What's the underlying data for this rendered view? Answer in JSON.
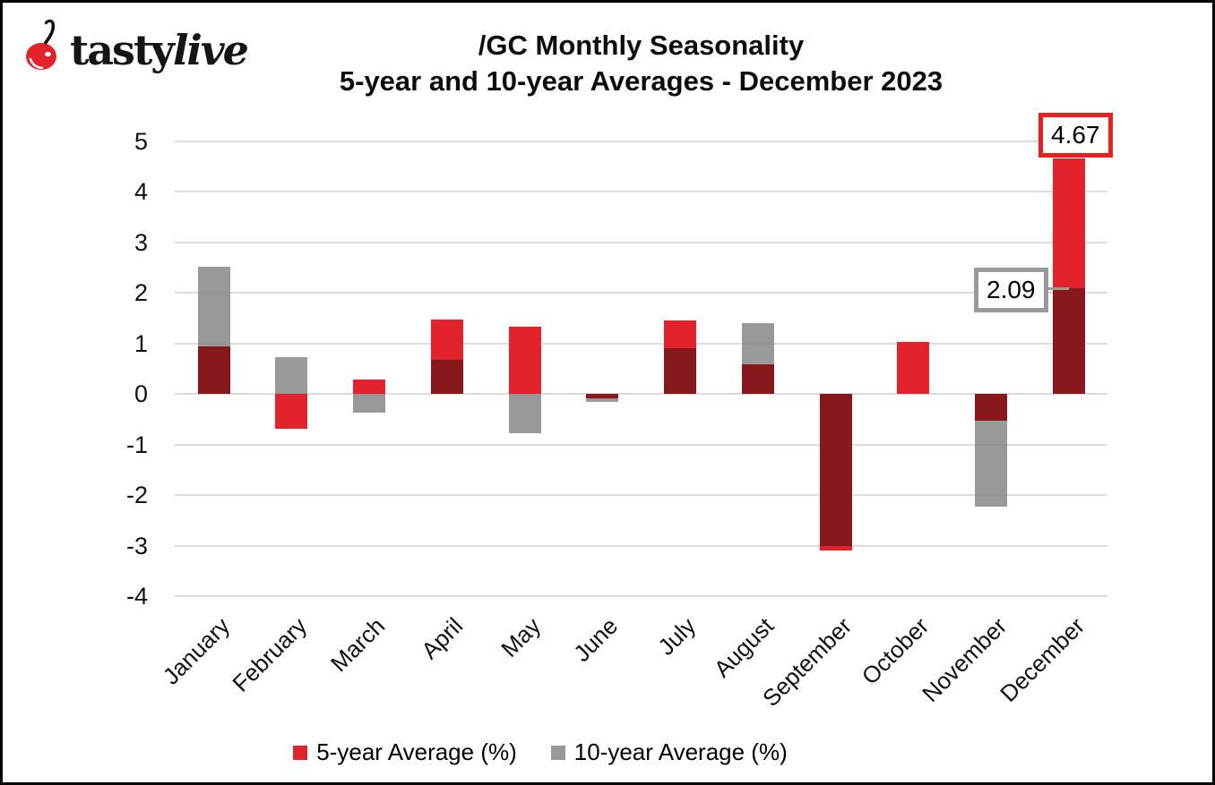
{
  "brand": {
    "word1": "tasty",
    "word2": "live"
  },
  "title": {
    "line1": "/GC Monthly Seasonality",
    "line2": "5-year and 10-year Averages - December 2023"
  },
  "chart_data": {
    "type": "bar",
    "categories": [
      "January",
      "February",
      "March",
      "April",
      "May",
      "June",
      "July",
      "August",
      "September",
      "October",
      "November",
      "December"
    ],
    "series": [
      {
        "name": "5-year Average (%)",
        "color": "#e2232b",
        "values": [
          0.95,
          -0.69,
          0.28,
          1.48,
          1.34,
          -0.09,
          1.46,
          0.59,
          -3.1,
          1.04,
          -0.52,
          4.67
        ]
      },
      {
        "name": "10-year Average (%)",
        "color": "#999999",
        "values": [
          2.52,
          0.73,
          -0.36,
          0.67,
          -0.77,
          -0.16,
          0.9,
          1.4,
          -3.01,
          0.0,
          -2.23,
          2.09
        ]
      }
    ],
    "overlap_color": "#87181c",
    "gridline_color": "#dcdcdc",
    "ylim": [
      -4,
      5
    ],
    "yticks": [
      5,
      4,
      3,
      2,
      1,
      0,
      -1,
      -2,
      -3,
      -4
    ],
    "grid": true,
    "legend_position": "bottom",
    "annotations": [
      {
        "label": "4.67",
        "month": "December",
        "series": "5-year Average (%)",
        "border_color": "#e8201f"
      },
      {
        "label": "2.09",
        "month": "December",
        "series": "10-year Average (%)",
        "border_color": "#9a9a9a"
      }
    ]
  }
}
